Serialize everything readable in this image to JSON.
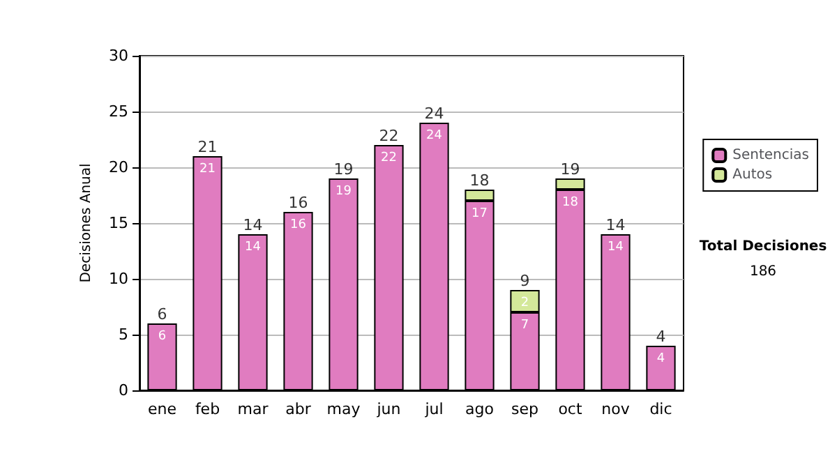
{
  "chart_data": {
    "type": "bar",
    "ylabel": "Decisiones Anual",
    "categories": [
      "ene",
      "feb",
      "mar",
      "abr",
      "may",
      "jun",
      "jul",
      "ago",
      "sep",
      "oct",
      "nov",
      "dic"
    ],
    "series": [
      {
        "name": "Sentencias",
        "color": "#e07cc0",
        "values": [
          6,
          21,
          14,
          16,
          19,
          22,
          24,
          17,
          7,
          18,
          14,
          4
        ],
        "value_labels": [
          "6",
          "21",
          "14",
          "16",
          "19",
          "22",
          "24",
          "17",
          "7",
          "18",
          "14",
          "4"
        ]
      },
      {
        "name": "Autos",
        "color": "#d4e89a",
        "values": [
          0,
          0,
          0,
          0,
          0,
          0,
          0,
          1,
          2,
          1,
          0,
          0
        ],
        "value_labels": [
          null,
          null,
          null,
          null,
          null,
          null,
          null,
          null,
          "2",
          null,
          null,
          null
        ]
      }
    ],
    "stacked": true,
    "totals": [
      "6",
      "21",
      "14",
      "16",
      "19",
      "22",
      "24",
      "18",
      "9",
      "19",
      "14",
      "4"
    ],
    "ylim": [
      0,
      30
    ],
    "yticks": [
      0,
      5,
      10,
      15,
      20,
      25,
      30
    ],
    "grid": "y",
    "legend": "right",
    "annotations": [
      "Total Decisiones",
      "186"
    ]
  }
}
